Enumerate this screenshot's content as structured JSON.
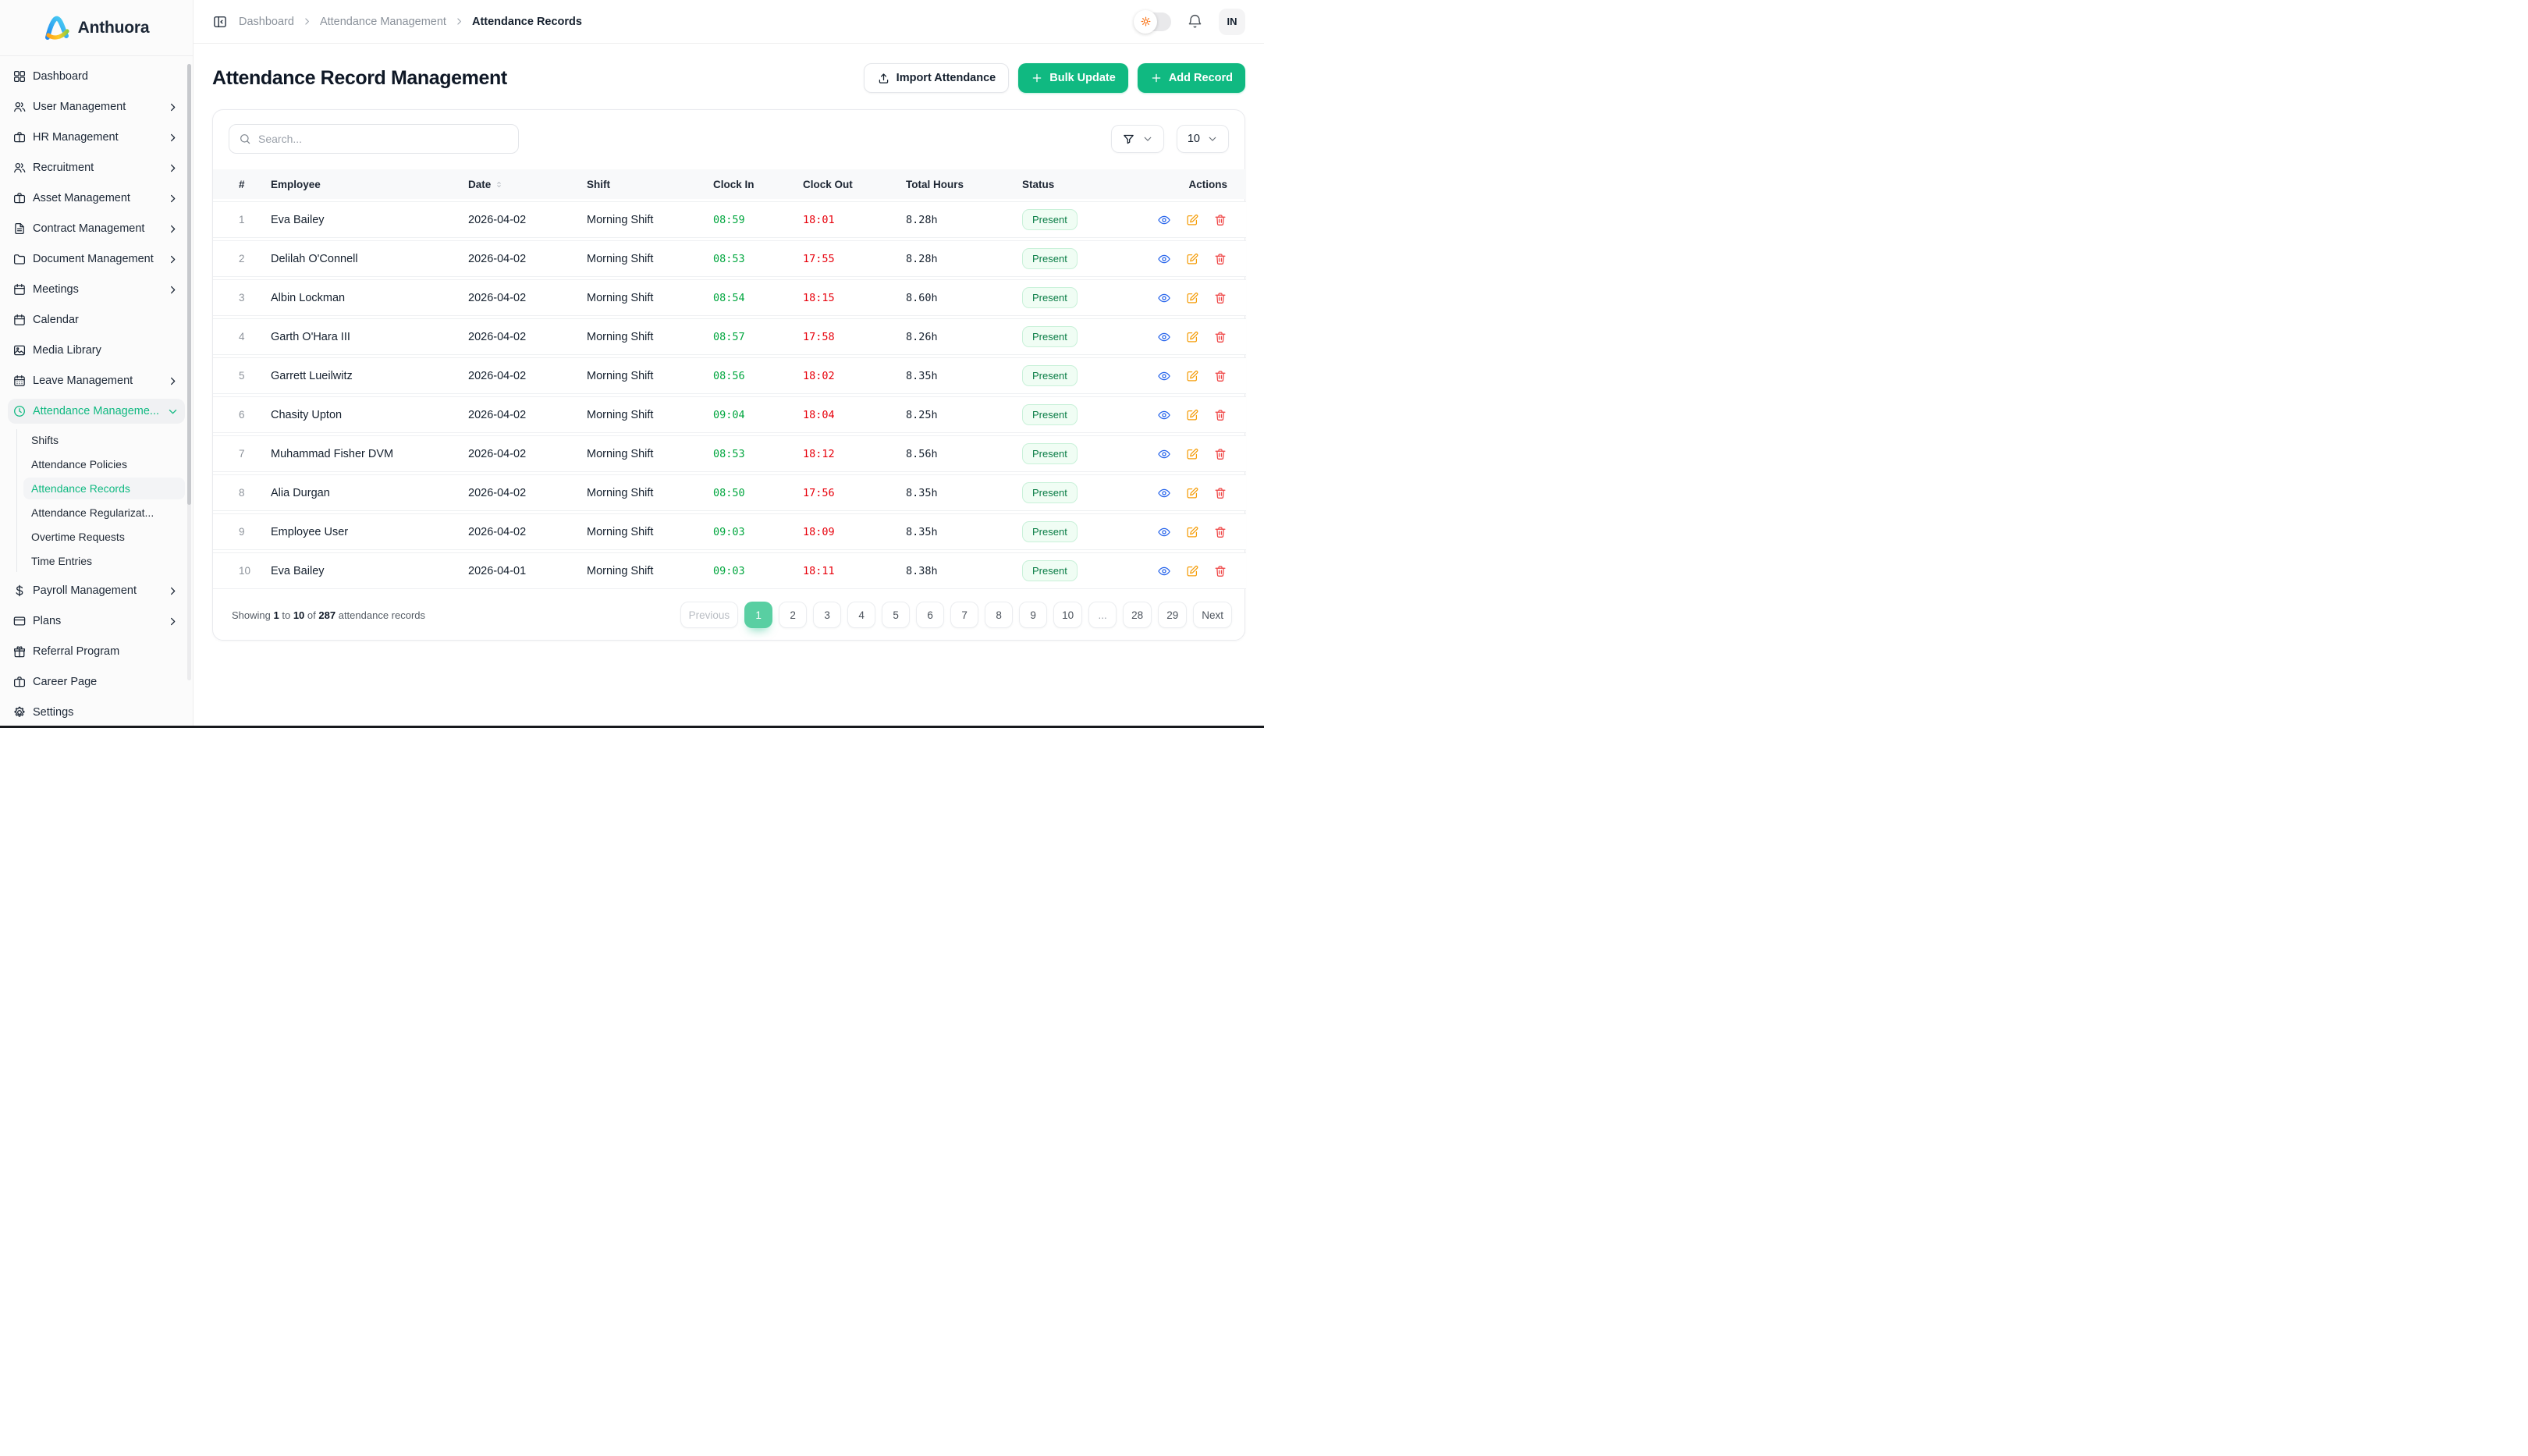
{
  "brand": {
    "name": "Anthuora",
    "logo_icon": "anthuora-logo"
  },
  "sidebar": {
    "items": [
      {
        "label": "Dashboard",
        "icon": "grid",
        "expandable": false
      },
      {
        "label": "User Management",
        "icon": "users",
        "expandable": true
      },
      {
        "label": "HR Management",
        "icon": "briefcase",
        "expandable": true
      },
      {
        "label": "Recruitment",
        "icon": "users",
        "expandable": true
      },
      {
        "label": "Asset Management",
        "icon": "briefcase",
        "expandable": true
      },
      {
        "label": "Contract Management",
        "icon": "file-text",
        "expandable": true
      },
      {
        "label": "Document Management",
        "icon": "folder",
        "expandable": true
      },
      {
        "label": "Meetings",
        "icon": "calendar",
        "expandable": true
      },
      {
        "label": "Calendar",
        "icon": "calendar",
        "expandable": false
      },
      {
        "label": "Media Library",
        "icon": "image",
        "expandable": false
      },
      {
        "label": "Leave Management",
        "icon": "calendar-days",
        "expandable": true
      },
      {
        "label": "Attendance Manageme...",
        "icon": "clock",
        "expandable": true,
        "active": true,
        "children": [
          {
            "label": "Shifts"
          },
          {
            "label": "Attendance Policies"
          },
          {
            "label": "Attendance Records",
            "active": true
          },
          {
            "label": "Attendance Regularizat..."
          },
          {
            "label": "Overtime Requests"
          },
          {
            "label": "Time Entries"
          }
        ]
      },
      {
        "label": "Payroll Management",
        "icon": "dollar",
        "expandable": true
      },
      {
        "label": "Plans",
        "icon": "credit-card",
        "expandable": true
      },
      {
        "label": "Referral Program",
        "icon": "gift",
        "expandable": false
      },
      {
        "label": "Career Page",
        "icon": "briefcase",
        "expandable": false
      },
      {
        "label": "Settings",
        "icon": "gear",
        "expandable": false
      }
    ]
  },
  "topbar": {
    "collapse_icon": "panel-left-icon",
    "breadcrumbs": [
      {
        "label": "Dashboard",
        "current": false
      },
      {
        "label": "Attendance Management",
        "current": false
      },
      {
        "label": "Attendance Records",
        "current": true
      }
    ],
    "theme_toggle_icon": "sun-icon",
    "notifications_icon": "bell-icon",
    "avatar_initials": "IN"
  },
  "page": {
    "title": "Attendance Record Management",
    "actions": {
      "import_label": "Import Attendance",
      "import_icon": "upload-icon",
      "bulk_label": "Bulk Update",
      "add_label": "Add Record",
      "plus_icon": "plus-icon"
    }
  },
  "toolbar": {
    "search_placeholder": "Search...",
    "search_icon": "search-icon",
    "filter_icon": "funnel-icon",
    "page_size": "10"
  },
  "table": {
    "columns": [
      "#",
      "Employee",
      "Date",
      "Shift",
      "Clock In",
      "Clock Out",
      "Total Hours",
      "Status",
      "Actions"
    ],
    "sort_column": "Date",
    "row_actions": [
      "view",
      "edit",
      "delete"
    ],
    "rows": [
      {
        "n": "1",
        "employee": "Eva Bailey",
        "date": "2026-04-02",
        "shift": "Morning Shift",
        "clock_in": "08:59",
        "clock_out": "18:01",
        "total_hours": "8.28h",
        "status": "Present"
      },
      {
        "n": "2",
        "employee": "Delilah O'Connell",
        "date": "2026-04-02",
        "shift": "Morning Shift",
        "clock_in": "08:53",
        "clock_out": "17:55",
        "total_hours": "8.28h",
        "status": "Present"
      },
      {
        "n": "3",
        "employee": "Albin Lockman",
        "date": "2026-04-02",
        "shift": "Morning Shift",
        "clock_in": "08:54",
        "clock_out": "18:15",
        "total_hours": "8.60h",
        "status": "Present"
      },
      {
        "n": "4",
        "employee": "Garth O'Hara III",
        "date": "2026-04-02",
        "shift": "Morning Shift",
        "clock_in": "08:57",
        "clock_out": "17:58",
        "total_hours": "8.26h",
        "status": "Present"
      },
      {
        "n": "5",
        "employee": "Garrett Lueilwitz",
        "date": "2026-04-02",
        "shift": "Morning Shift",
        "clock_in": "08:56",
        "clock_out": "18:02",
        "total_hours": "8.35h",
        "status": "Present"
      },
      {
        "n": "6",
        "employee": "Chasity Upton",
        "date": "2026-04-02",
        "shift": "Morning Shift",
        "clock_in": "09:04",
        "clock_out": "18:04",
        "total_hours": "8.25h",
        "status": "Present"
      },
      {
        "n": "7",
        "employee": "Muhammad Fisher DVM",
        "date": "2026-04-02",
        "shift": "Morning Shift",
        "clock_in": "08:53",
        "clock_out": "18:12",
        "total_hours": "8.56h",
        "status": "Present"
      },
      {
        "n": "8",
        "employee": "Alia Durgan",
        "date": "2026-04-02",
        "shift": "Morning Shift",
        "clock_in": "08:50",
        "clock_out": "17:56",
        "total_hours": "8.35h",
        "status": "Present"
      },
      {
        "n": "9",
        "employee": "Employee User",
        "date": "2026-04-02",
        "shift": "Morning Shift",
        "clock_in": "09:03",
        "clock_out": "18:09",
        "total_hours": "8.35h",
        "status": "Present"
      },
      {
        "n": "10",
        "employee": "Eva Bailey",
        "date": "2026-04-01",
        "shift": "Morning Shift",
        "clock_in": "09:03",
        "clock_out": "18:11",
        "total_hours": "8.38h",
        "status": "Present"
      }
    ]
  },
  "pagination": {
    "showing_prefix": "Showing",
    "from": "1",
    "to_word": "to",
    "to": "10",
    "of_word": "of",
    "total": "287",
    "suffix": "attendance records",
    "previous_label": "Previous",
    "next_label": "Next",
    "pages": [
      "1",
      "2",
      "3",
      "4",
      "5",
      "6",
      "7",
      "8",
      "9",
      "10",
      "...",
      "28",
      "29"
    ],
    "active_page": "1"
  },
  "colors": {
    "accent": "#10b981",
    "clock_in": "#00a63e",
    "clock_out": "#e7000b",
    "badge_bg": "#f0fdf4",
    "badge_text": "#0a7d46",
    "view_icon": "#2563eb",
    "edit_icon": "#f59e0b",
    "delete_icon": "#ef4444",
    "sun_icon": "#f97316"
  }
}
